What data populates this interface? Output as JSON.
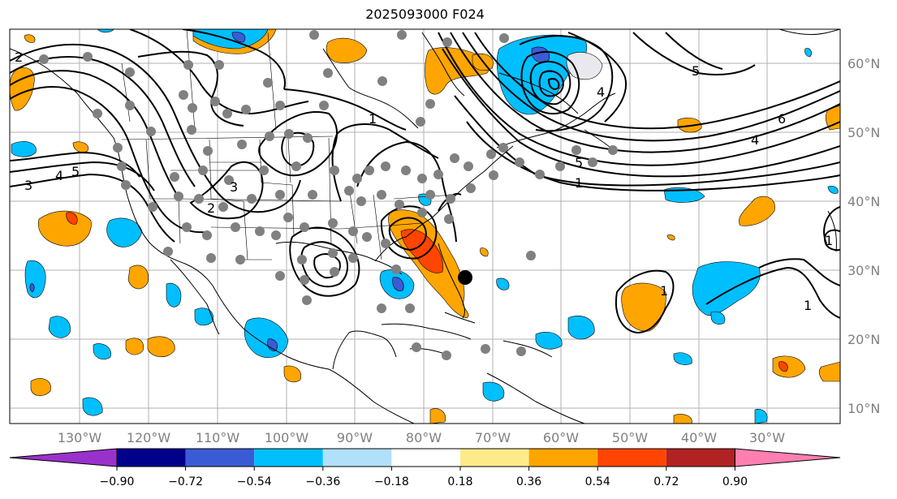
{
  "title": "2025093000 F024",
  "longitude_labels": [
    "130°W",
    "120°W",
    "110°W",
    "100°W",
    "90°W",
    "80°W",
    "70°W",
    "60°W",
    "50°W",
    "40°W",
    "30°W"
  ],
  "latitude_labels": [
    "60°N",
    "50°N",
    "40°N",
    "30°N",
    "20°N",
    "10°N"
  ],
  "contour_labels": [
    "1",
    "2",
    "3",
    "4",
    "5",
    "6"
  ],
  "colorbar": {
    "tick_labels": [
      "−0.90",
      "−0.72",
      "−0.54",
      "−0.36",
      "−0.18",
      "0.18",
      "0.36",
      "0.54",
      "0.72",
      "0.90"
    ],
    "colors": [
      "#9932cc",
      "#00008b",
      "#3a5bd6",
      "#00bfff",
      "#b0e0fa",
      "#ffffff",
      "#fdeb8a",
      "#ffa500",
      "#ff4500",
      "#b22222",
      "#ff7fb0"
    ]
  },
  "storm_marker": {
    "lon": -74.5,
    "lat": 29.0
  }
}
